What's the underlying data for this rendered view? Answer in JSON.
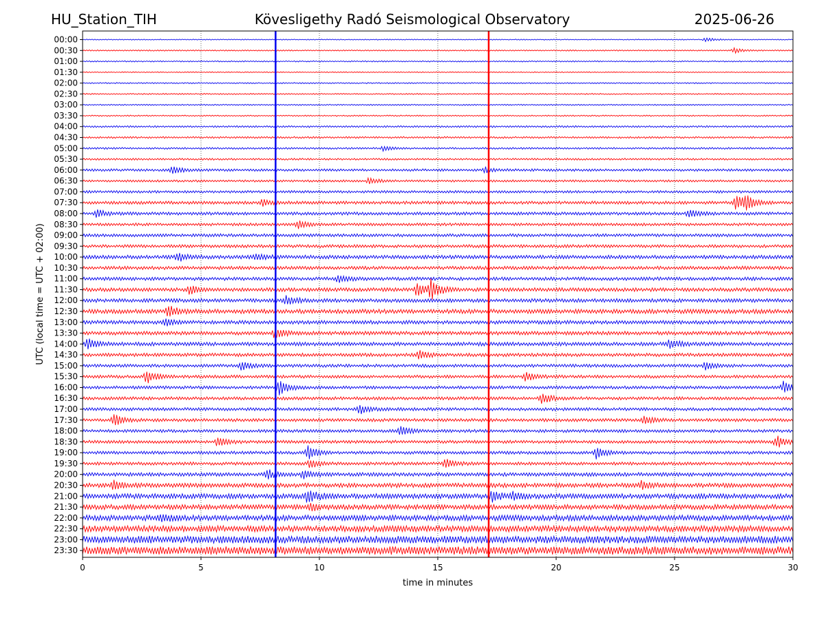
{
  "header": {
    "station": "HU_Station_TIH",
    "observatory": "Kövesligethy Radó Seismological Observatory",
    "date": "2025-06-26"
  },
  "chart_data": {
    "type": "line",
    "title": "Kövesligethy Radó Seismological Observatory",
    "xlabel": "time in minutes",
    "ylabel": "UTC (local time = UTC + 02:00)",
    "xlim": [
      0,
      30
    ],
    "x_ticks": [
      "0",
      "5",
      "10",
      "15",
      "20",
      "25",
      "30"
    ],
    "grid_x": true,
    "colors": {
      "primary": "#0000ee",
      "secondary": "#ff0000"
    },
    "rows": [
      "00:00",
      "00:30",
      "01:00",
      "01:30",
      "02:00",
      "02:30",
      "03:00",
      "03:30",
      "04:00",
      "04:30",
      "05:00",
      "05:30",
      "06:00",
      "06:30",
      "07:00",
      "07:30",
      "08:00",
      "08:30",
      "09:00",
      "09:30",
      "10:00",
      "10:30",
      "11:00",
      "11:30",
      "12:00",
      "12:30",
      "13:00",
      "13:30",
      "14:00",
      "14:30",
      "15:00",
      "15:30",
      "16:00",
      "16:30",
      "17:00",
      "17:30",
      "18:00",
      "18:30",
      "19:00",
      "19:30",
      "20:00",
      "20:30",
      "21:00",
      "21:30",
      "22:00",
      "22:30",
      "23:00",
      "23:30"
    ],
    "noise_level": [
      0.15,
      0.2,
      0.2,
      0.15,
      0.2,
      0.2,
      0.2,
      0.2,
      0.3,
      0.3,
      0.3,
      0.3,
      0.4,
      0.35,
      0.4,
      0.5,
      0.5,
      0.45,
      0.5,
      0.5,
      0.6,
      0.55,
      0.55,
      0.6,
      0.6,
      0.7,
      0.6,
      0.6,
      0.6,
      0.55,
      0.5,
      0.5,
      0.5,
      0.5,
      0.5,
      0.5,
      0.5,
      0.5,
      0.5,
      0.5,
      0.6,
      0.7,
      0.8,
      0.8,
      0.9,
      1.0,
      1.2,
      1.3
    ],
    "vertical_lines": [
      {
        "x": 8.15,
        "color": "#0000ee"
      },
      {
        "x": 17.15,
        "color": "#ff0000"
      }
    ],
    "events": [
      {
        "row": 0,
        "x": 26.3,
        "amp": 1.0
      },
      {
        "row": 1,
        "x": 27.5,
        "amp": 1.2
      },
      {
        "row": 10,
        "x": 12.7,
        "amp": 1.2
      },
      {
        "row": 12,
        "x": 3.8,
        "amp": 1.8
      },
      {
        "row": 12,
        "x": 17.0,
        "amp": 1.2
      },
      {
        "row": 13,
        "x": 12.1,
        "amp": 1.5
      },
      {
        "row": 15,
        "x": 27.6,
        "amp": 3.5
      },
      {
        "row": 15,
        "x": 28.0,
        "amp": 3.0
      },
      {
        "row": 15,
        "x": 7.6,
        "amp": 1.5
      },
      {
        "row": 16,
        "x": 0.6,
        "amp": 1.6
      },
      {
        "row": 16,
        "x": 25.6,
        "amp": 2.0
      },
      {
        "row": 17,
        "x": 9.1,
        "amp": 1.8
      },
      {
        "row": 20,
        "x": 4.0,
        "amp": 1.8
      },
      {
        "row": 20,
        "x": 7.3,
        "amp": 1.6
      },
      {
        "row": 22,
        "x": 10.8,
        "amp": 1.6
      },
      {
        "row": 23,
        "x": 14.7,
        "amp": 4.5
      },
      {
        "row": 23,
        "x": 14.1,
        "amp": 3.0
      },
      {
        "row": 23,
        "x": 4.5,
        "amp": 1.8
      },
      {
        "row": 24,
        "x": 8.6,
        "amp": 2.0
      },
      {
        "row": 25,
        "x": 3.6,
        "amp": 2.5
      },
      {
        "row": 26,
        "x": 3.5,
        "amp": 1.6
      },
      {
        "row": 27,
        "x": 8.1,
        "amp": 2.2
      },
      {
        "row": 28,
        "x": 0.2,
        "amp": 3.0
      },
      {
        "row": 28,
        "x": 24.8,
        "amp": 2.2
      },
      {
        "row": 29,
        "x": 14.2,
        "amp": 2.0
      },
      {
        "row": 30,
        "x": 6.7,
        "amp": 2.0
      },
      {
        "row": 30,
        "x": 26.3,
        "amp": 1.8
      },
      {
        "row": 31,
        "x": 2.7,
        "amp": 3.0
      },
      {
        "row": 31,
        "x": 18.7,
        "amp": 2.0
      },
      {
        "row": 32,
        "x": 8.3,
        "amp": 3.5
      },
      {
        "row": 32,
        "x": 29.6,
        "amp": 2.8
      },
      {
        "row": 33,
        "x": 19.4,
        "amp": 2.5
      },
      {
        "row": 34,
        "x": 11.7,
        "amp": 2.2
      },
      {
        "row": 35,
        "x": 1.3,
        "amp": 2.8
      },
      {
        "row": 35,
        "x": 23.7,
        "amp": 2.0
      },
      {
        "row": 36,
        "x": 13.4,
        "amp": 2.2
      },
      {
        "row": 37,
        "x": 5.7,
        "amp": 2.0
      },
      {
        "row": 37,
        "x": 29.3,
        "amp": 3.0
      },
      {
        "row": 38,
        "x": 21.7,
        "amp": 3.0
      },
      {
        "row": 38,
        "x": 9.5,
        "amp": 3.0
      },
      {
        "row": 39,
        "x": 15.3,
        "amp": 2.2
      },
      {
        "row": 39,
        "x": 9.6,
        "amp": 1.8
      },
      {
        "row": 40,
        "x": 7.8,
        "amp": 2.0
      },
      {
        "row": 40,
        "x": 9.3,
        "amp": 2.0
      },
      {
        "row": 41,
        "x": 1.3,
        "amp": 2.0
      },
      {
        "row": 41,
        "x": 23.6,
        "amp": 1.6
      },
      {
        "row": 42,
        "x": 9.5,
        "amp": 3.2
      },
      {
        "row": 42,
        "x": 17.3,
        "amp": 2.2
      },
      {
        "row": 42,
        "x": 18.2,
        "amp": 1.6
      },
      {
        "row": 43,
        "x": 9.6,
        "amp": 1.6
      },
      {
        "row": 44,
        "x": 3.3,
        "amp": 1.6
      }
    ]
  }
}
